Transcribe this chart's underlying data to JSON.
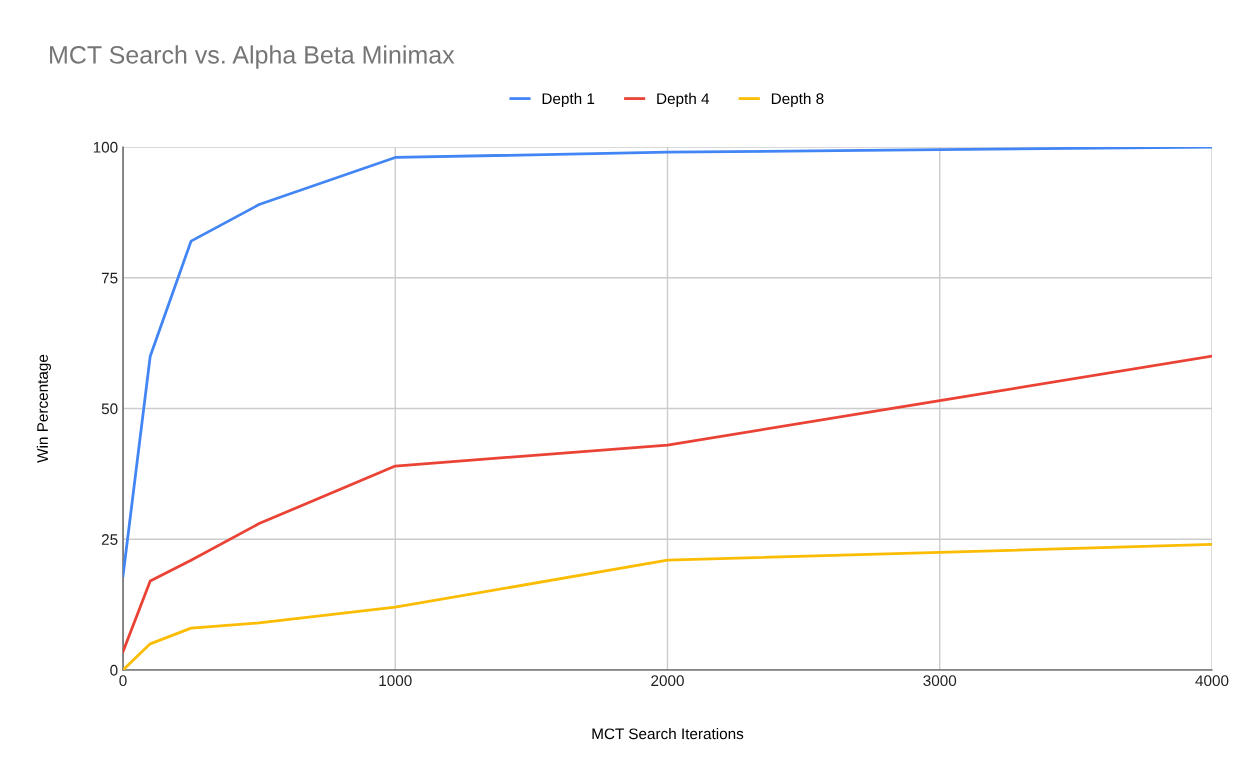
{
  "chart_data": {
    "type": "line",
    "title": "MCT Search vs. Alpha Beta Minimax",
    "xlabel": "MCT Search Iterations",
    "ylabel": "Win Percentage",
    "x": [
      0,
      100,
      250,
      500,
      1000,
      2000,
      3000,
      4000
    ],
    "series": [
      {
        "name": "Depth 1",
        "color": "#4285f4",
        "values": [
          18,
          60,
          82,
          89,
          98,
          99,
          99.5,
          100
        ]
      },
      {
        "name": "Depth 4",
        "color": "#ea4335",
        "values": [
          3.5,
          17,
          21,
          28,
          39,
          43,
          51.5,
          60
        ]
      },
      {
        "name": "Depth 8",
        "color": "#fbbc04",
        "values": [
          0,
          5,
          8,
          9,
          12,
          21,
          22.5,
          24
        ]
      }
    ],
    "xlim": [
      0,
      4000
    ],
    "xticks": [
      0,
      1000,
      2000,
      3000,
      4000
    ],
    "ylim": [
      0,
      100
    ],
    "yticks": [
      0,
      25,
      50,
      75,
      100
    ],
    "grid": true,
    "legend": "top",
    "marker": "none",
    "line_style": "solid"
  }
}
